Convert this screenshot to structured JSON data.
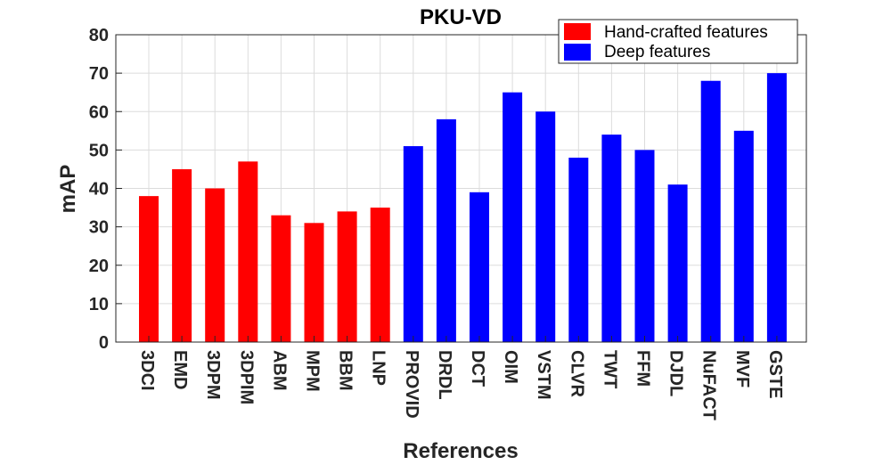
{
  "chart_data": {
    "type": "bar",
    "title": "PKU-VD",
    "xlabel": "References",
    "ylabel": "mAP",
    "ylim": [
      0,
      80
    ],
    "yticks": [
      0,
      10,
      20,
      30,
      40,
      50,
      60,
      70,
      80
    ],
    "grid": true,
    "legend_position": "top-right",
    "categories": [
      "3DCI",
      "EMD",
      "3DPM",
      "3DPIM",
      "ABM",
      "MPM",
      "BBM",
      "LNP",
      "PROVID",
      "DRDL",
      "DCT",
      "OIM",
      "VSTM",
      "CLVR",
      "TWT",
      "FFM",
      "DJDL",
      "NuFACT",
      "MVF",
      "GSTE"
    ],
    "series": [
      {
        "name": "Hand-crafted features",
        "color": "#ff0000",
        "values": [
          38,
          45,
          40,
          47,
          33,
          31,
          34,
          35,
          null,
          null,
          null,
          null,
          null,
          null,
          null,
          null,
          null,
          null,
          null,
          null
        ]
      },
      {
        "name": "Deep features",
        "color": "#0000ff",
        "values": [
          null,
          null,
          null,
          null,
          null,
          null,
          null,
          null,
          51,
          58,
          39,
          65,
          60,
          48,
          54,
          50,
          41,
          68,
          55,
          70
        ]
      }
    ]
  }
}
